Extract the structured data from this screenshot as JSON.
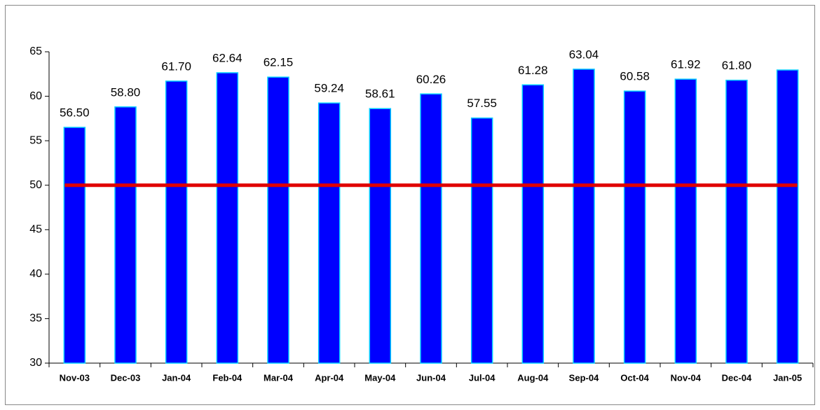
{
  "chart_data": {
    "type": "bar",
    "categories": [
      "Nov-03",
      "Dec-03",
      "Jan-04",
      "Feb-04",
      "Mar-04",
      "Apr-04",
      "May-04",
      "Jun-04",
      "Jul-04",
      "Aug-04",
      "Sep-04",
      "Oct-04",
      "Nov-04",
      "Dec-04",
      "Jan-05"
    ],
    "values": [
      56.5,
      58.8,
      61.7,
      62.64,
      62.15,
      59.24,
      58.61,
      60.26,
      57.55,
      61.28,
      63.04,
      60.58,
      61.92,
      61.8,
      62.95
    ],
    "value_labels": [
      "56.50",
      "58.80",
      "61.70",
      "62.64",
      "62.15",
      "59.24",
      "58.61",
      "60.26",
      "57.55",
      "61.28",
      "63.04",
      "60.58",
      "61.92",
      "61.80",
      null
    ],
    "color": "#0000ff",
    "reference_line": {
      "value": 50,
      "color": "#e00000"
    },
    "ylim": [
      30,
      65
    ],
    "yticks": [
      30,
      35,
      40,
      45,
      50,
      55,
      60,
      65
    ],
    "grid": false
  }
}
